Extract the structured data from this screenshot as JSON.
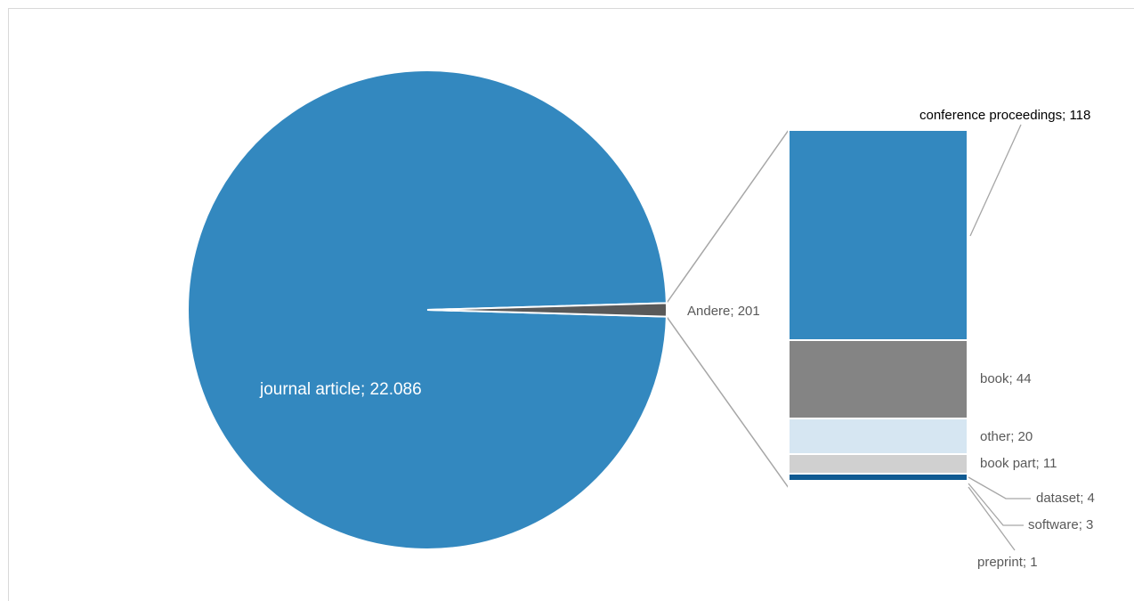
{
  "chart_data": {
    "type": "pie",
    "subtype": "bar-of-pie",
    "title": "",
    "main_slices": [
      {
        "label": "journal article",
        "value": 22086,
        "display": "journal article; 22.086",
        "color": "#3388BF"
      },
      {
        "label": "Andere",
        "value": 201,
        "display": "Andere; 201",
        "color": "#595959"
      }
    ],
    "breakdown": [
      {
        "label": "conference proceedings",
        "value": 118,
        "display": "conference proceedings; 118",
        "color": "#3388BF"
      },
      {
        "label": "book",
        "value": 44,
        "display": "book; 44",
        "color": "#848484"
      },
      {
        "label": "other",
        "value": 20,
        "display": "other; 20",
        "color": "#D6E6F2"
      },
      {
        "label": "book part",
        "value": 11,
        "display": "book part; 11",
        "color": "#D0D0D0"
      },
      {
        "label": "dataset",
        "value": 4,
        "display": "dataset; 4",
        "color": "#0F5A92"
      },
      {
        "label": "software",
        "value": 3,
        "display": "software; 3",
        "color": "#FFFFFF"
      },
      {
        "label": "preprint",
        "value": 1,
        "display": "preprint; 1",
        "color": "#3388BF"
      }
    ],
    "legend": "none"
  }
}
